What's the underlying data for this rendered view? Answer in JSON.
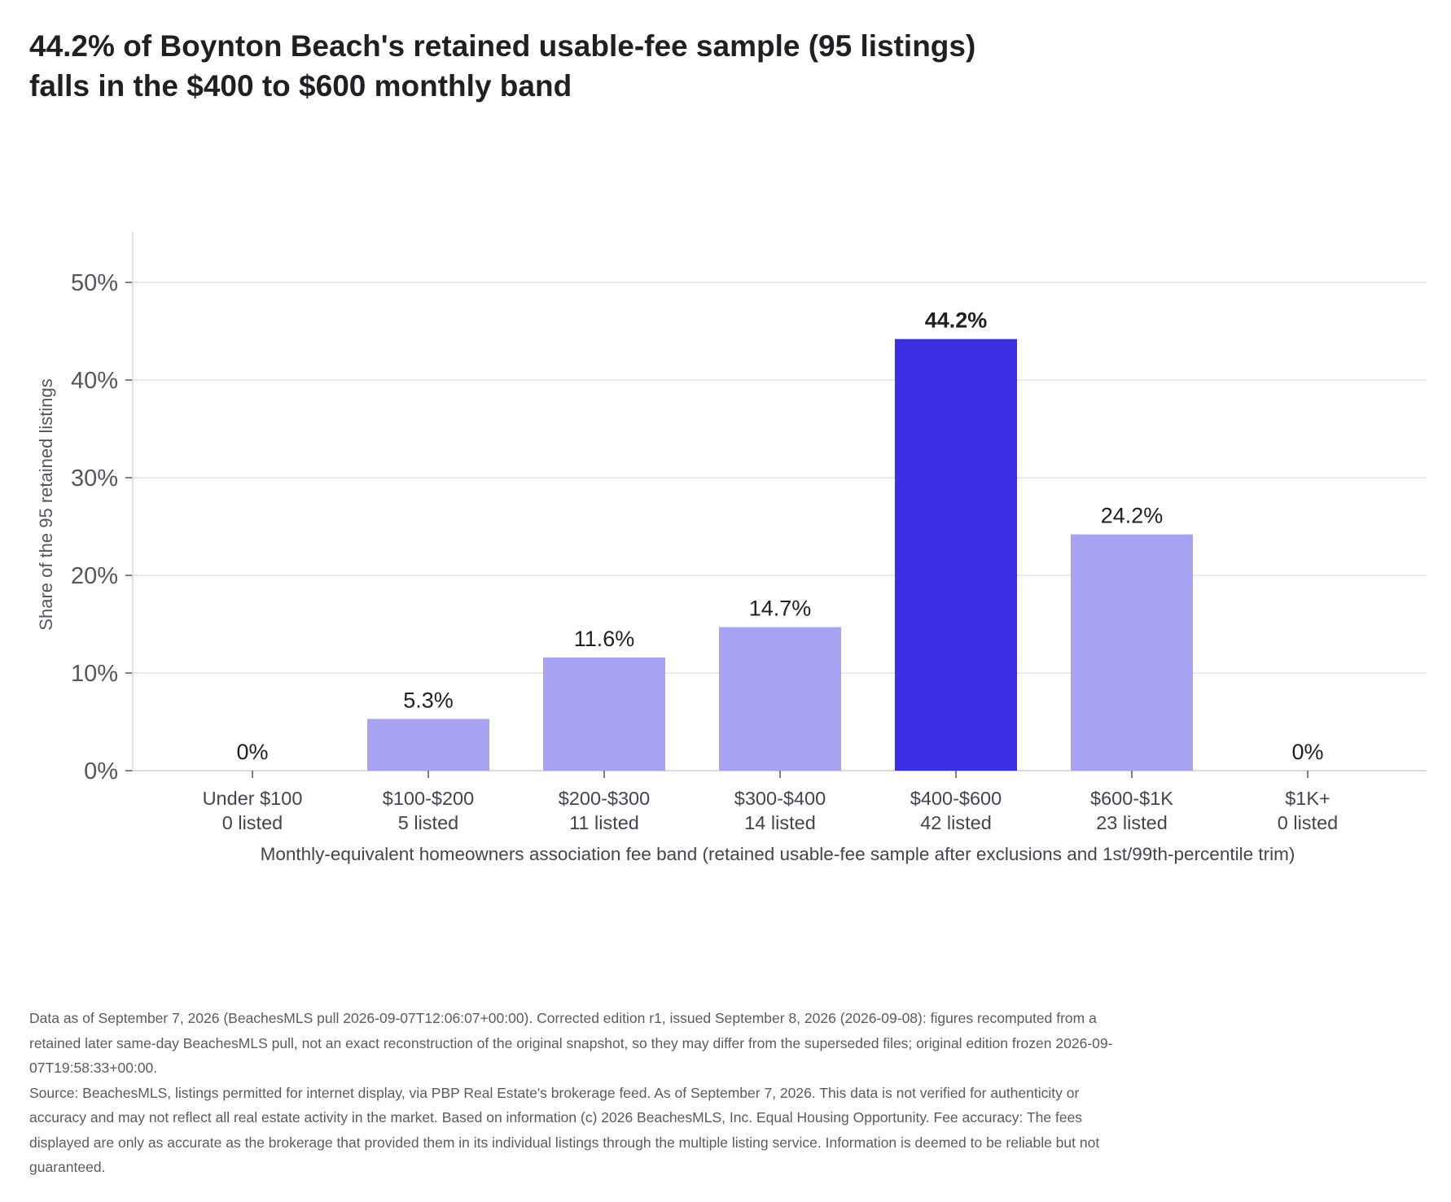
{
  "title_lines": [
    "44.2% of Boynton Beach's retained usable-fee sample (95 listings)",
    "falls in the $400 to $600 monthly band"
  ],
  "notes": [
    "Data as of September 7, 2026 (BeachesMLS pull 2026-09-07T12:06:07+00:00). Corrected edition r1, issued September 8, 2026 (2026-09-08): figures recomputed from a retained later same-day BeachesMLS pull, not an exact reconstruction of the original snapshot, so they may differ from the superseded files; original edition frozen 2026-09-07T19:58:33+00:00.",
    "Source: BeachesMLS, listings permitted for internet display, via PBP Real Estate's brokerage feed. As of September 7, 2026. This data is not verified for authenticity or accuracy and may not reflect all real estate activity in the market. Based on information (c) 2026 BeachesMLS, Inc. Equal Housing Opportunity. Fee accuracy: The fees displayed are only as accurate as the brokerage that provided them in its individual listings through the multiple listing service. Information is deemed to be reliable but not guaranteed."
  ],
  "chart_data": {
    "type": "bar",
    "categories": [
      "Under $100",
      "$100-$200",
      "$200-$300",
      "$300-$400",
      "$400-$600",
      "$600-$1K",
      "$1K+"
    ],
    "counts": [
      "0 listed",
      "5 listed",
      "11 listed",
      "14 listed",
      "42 listed",
      "23 listed",
      "0 listed"
    ],
    "values": [
      0,
      5.3,
      11.6,
      14.7,
      44.2,
      24.2,
      0
    ],
    "value_labels": [
      "0%",
      "5.3%",
      "11.6%",
      "14.7%",
      "44.2%",
      "24.2%",
      "0%"
    ],
    "highlight_index": 4,
    "xlabel": "Monthly-equivalent homeowners association fee band (retained usable-fee sample after exclusions and 1st/99th-percentile trim)",
    "ylabel": "Share of the 95 retained listings",
    "yticks": [
      0,
      10,
      20,
      30,
      40,
      50
    ],
    "ytick_labels": [
      "0%",
      "10%",
      "20%",
      "30%",
      "40%",
      "50%"
    ],
    "ylim": [
      0,
      55
    ],
    "grid": true,
    "colors": {
      "bar": "#a6a3f2",
      "highlight": "#3c2fe3",
      "grid": "#e2e2ee",
      "axis": "#dadae6"
    }
  }
}
